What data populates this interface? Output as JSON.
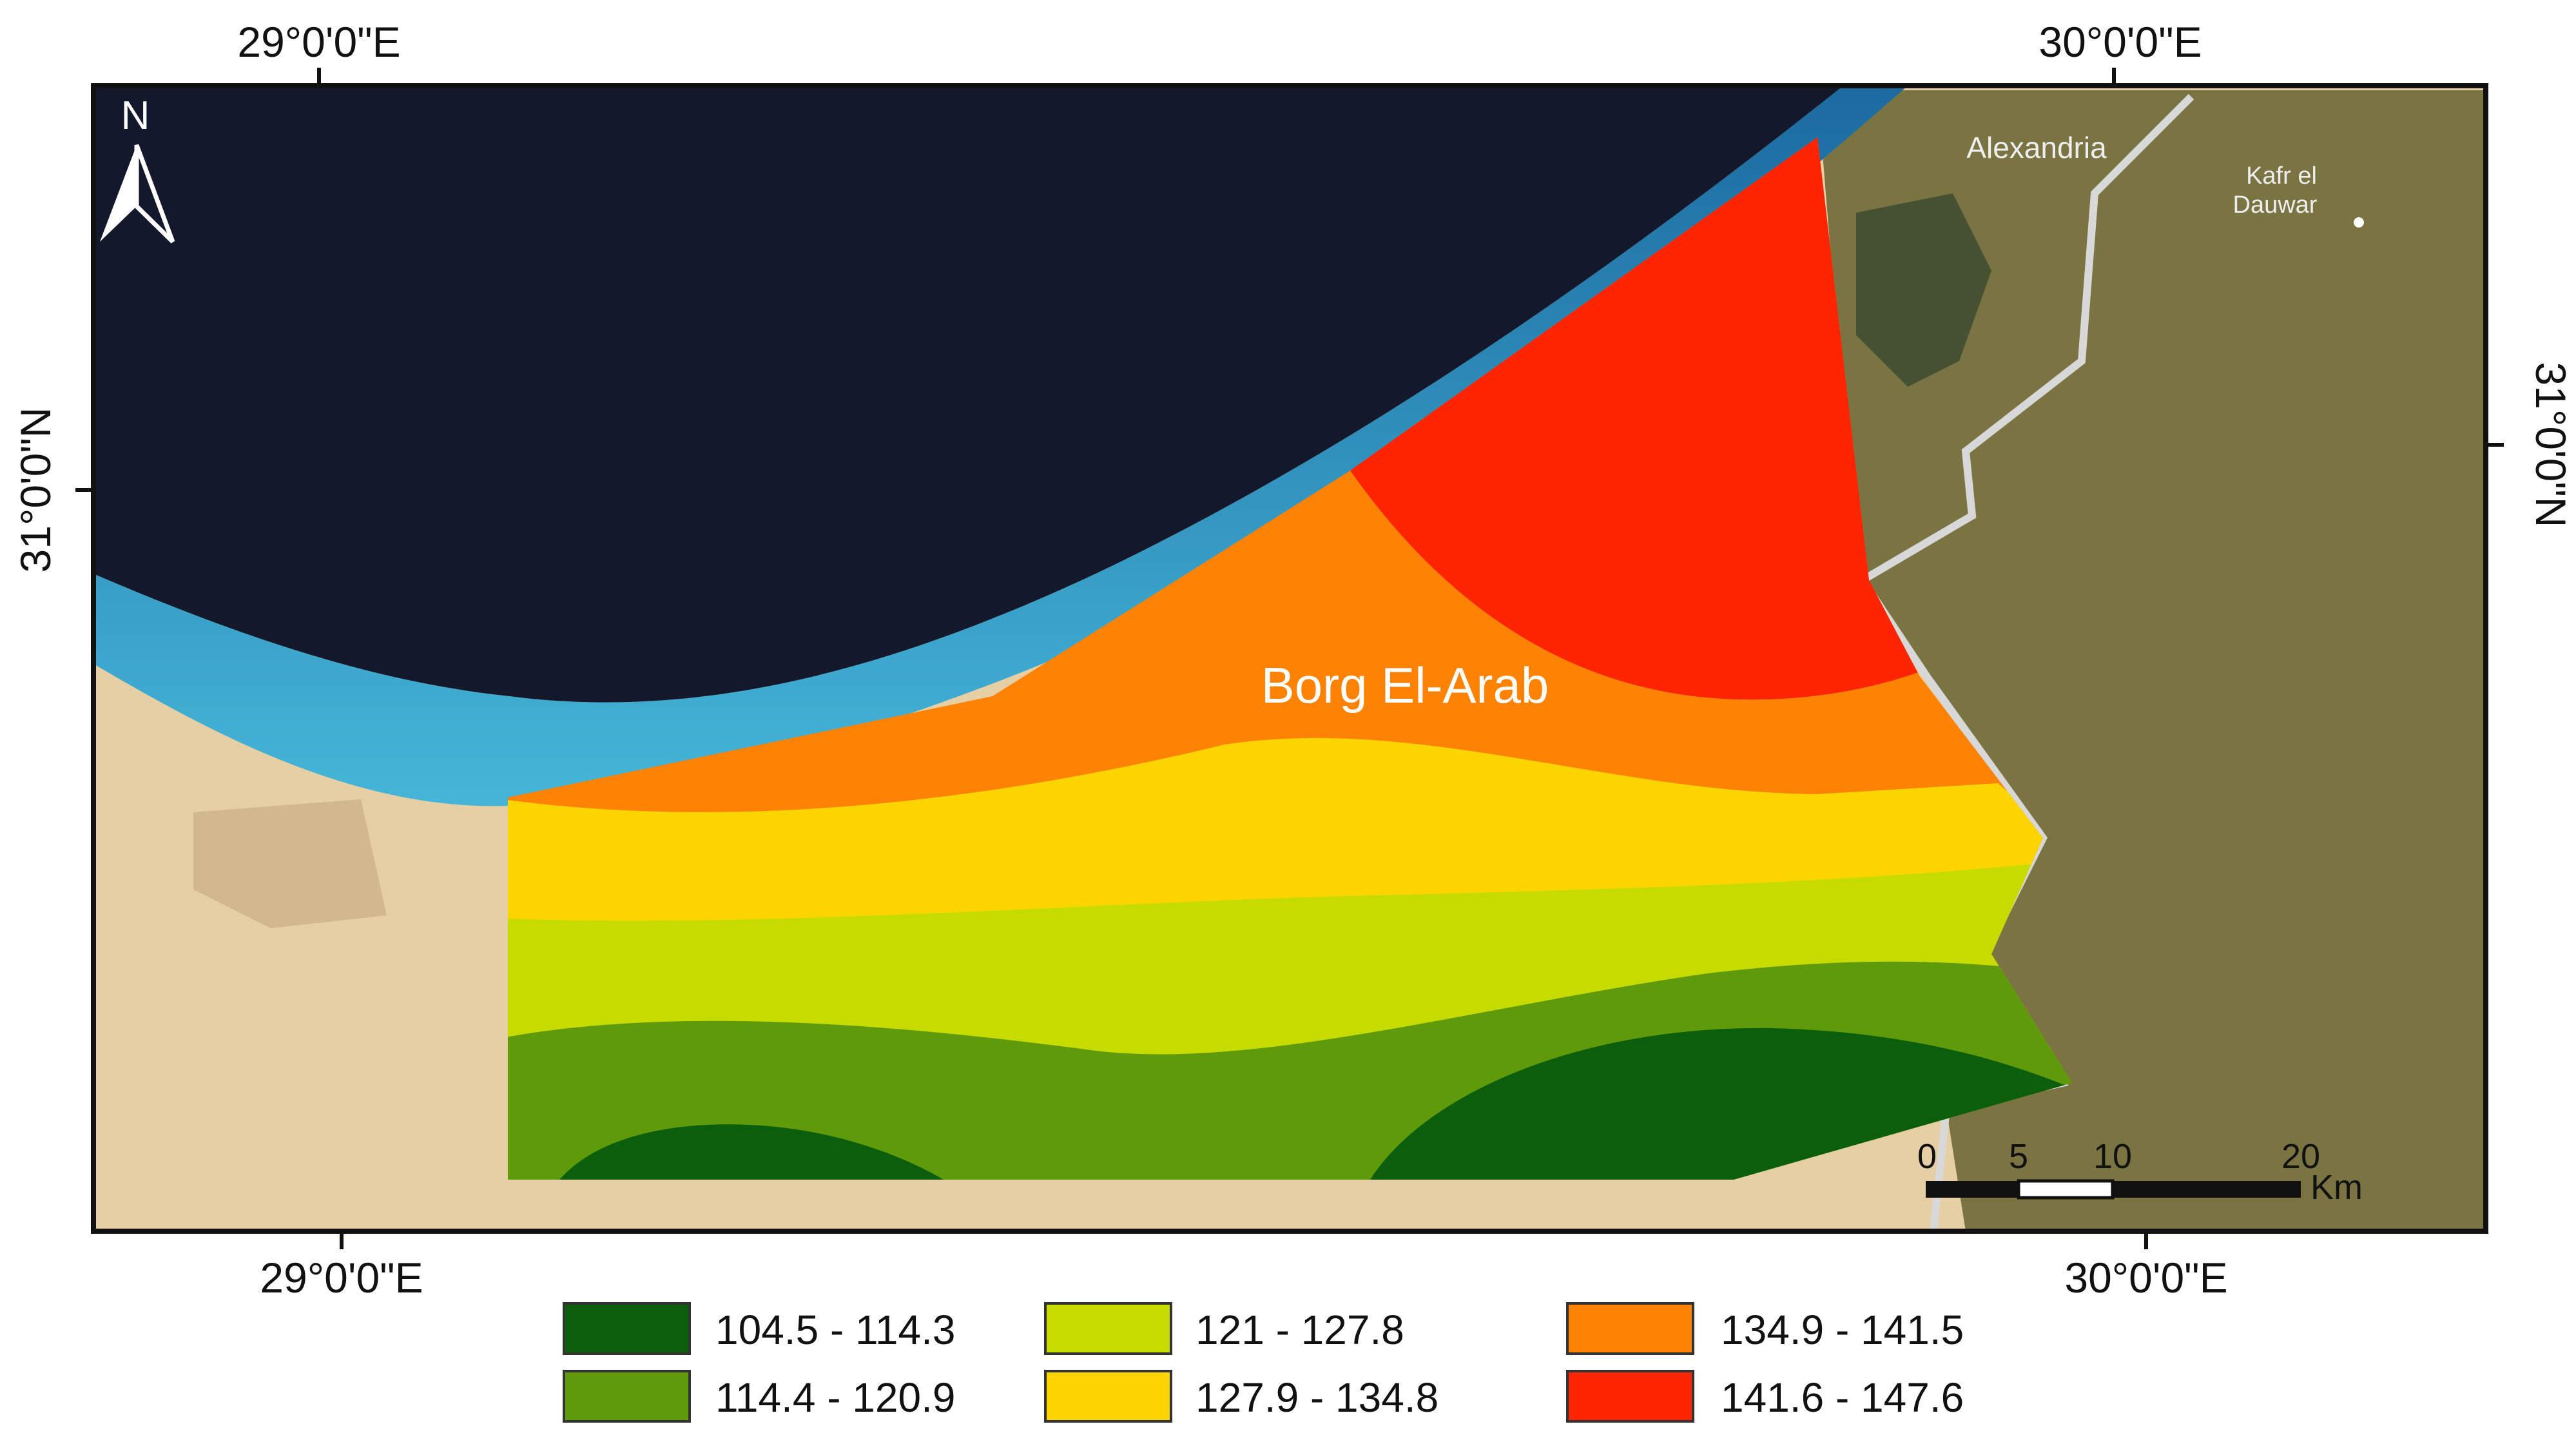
{
  "map": {
    "region_label": "Borg El-Arab",
    "north_label": "N",
    "graticule": {
      "top": [
        "29°0'0\"E",
        "30°0'0\"E"
      ],
      "bottom": [
        "29°0'0\"E",
        "30°0'0\"E"
      ],
      "left": [
        "31°0'0\"N"
      ],
      "right": [
        "31°0'0\"N"
      ]
    },
    "places": [
      {
        "name": "Alexandria"
      },
      {
        "name": "Kafr el"
      },
      {
        "name": "Dauwar"
      }
    ],
    "scale_bar": {
      "ticks": [
        "0",
        "5",
        "10",
        "20"
      ],
      "unit": "Km"
    },
    "legend": [
      {
        "label": "104.5 - 114.3",
        "color": "#0b5e0b"
      },
      {
        "label": "114.4 - 120.9",
        "color": "#5e9a0a"
      },
      {
        "label": "121 - 127.8",
        "color": "#c6dc00"
      },
      {
        "label": "127.9 - 134.8",
        "color": "#fcd400"
      },
      {
        "label": "134.9 - 141.5",
        "color": "#fe8204"
      },
      {
        "label": "141.6 - 147.6",
        "color": "#fe2500"
      }
    ],
    "colors": {
      "sea": "#13192b",
      "desert": "#e7cfa5",
      "farmland": "#7a7443",
      "road": "#d8d8d8"
    }
  }
}
